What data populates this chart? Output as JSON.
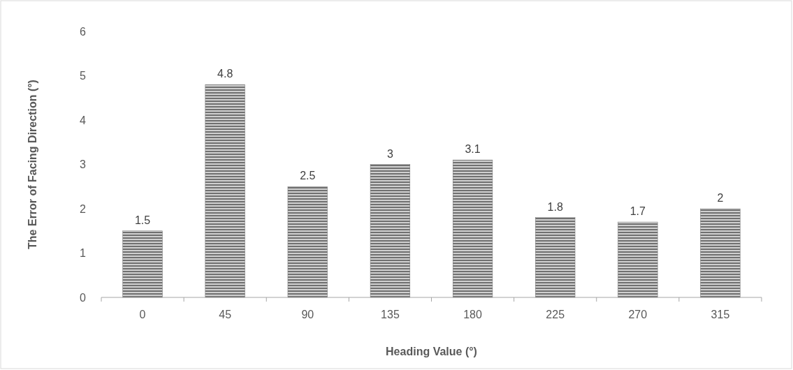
{
  "chart_data": {
    "type": "bar",
    "xlabel": "Heading Value (°)",
    "ylabel": "The Error of Facing Direction (°)",
    "categories": [
      "0",
      "45",
      "90",
      "135",
      "180",
      "225",
      "270",
      "315"
    ],
    "values": [
      1.5,
      4.8,
      2.5,
      3,
      3.1,
      1.8,
      1.7,
      2
    ],
    "color": "#707070",
    "ylim": [
      0,
      6
    ],
    "yticks": [
      0,
      1,
      2,
      3,
      4,
      5,
      6
    ],
    "grid": false,
    "data_labels": true
  }
}
